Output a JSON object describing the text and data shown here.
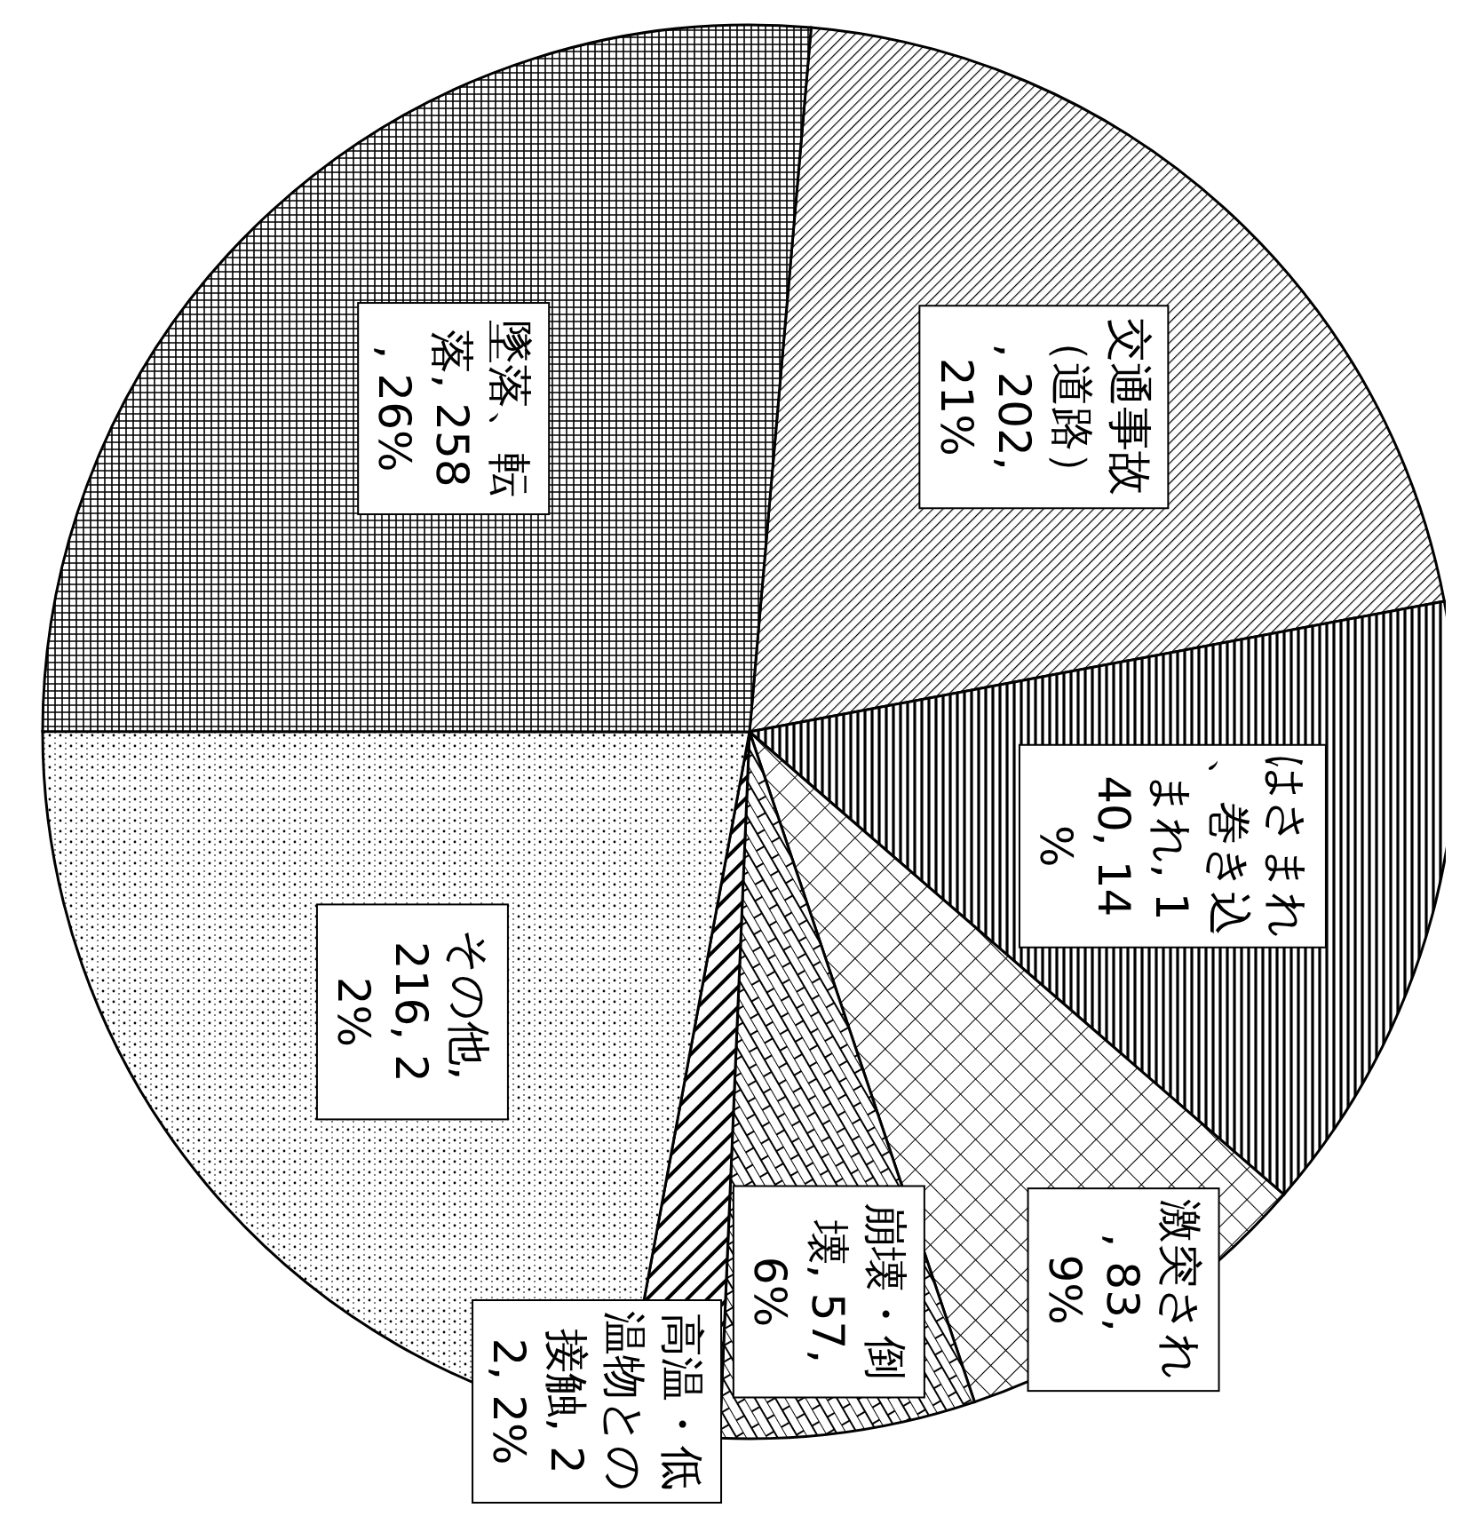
{
  "chart_data": {
    "type": "pie",
    "categories": [
      "交通事故（道路）",
      "はさまれ、巻き込まれ",
      "激突され",
      "崩壊・倒壊",
      "高温・低温物との接触",
      "その他",
      "墜落、転落"
    ],
    "values": [
      202,
      140,
      83,
      57,
      22,
      216,
      258
    ],
    "value_labels": [
      ", 202, 21%",
      ", 140, 14%",
      ", 83, 9%",
      ", 57, 6%",
      ", 22, 2%",
      ", 216, 22%",
      ", 258, 26%"
    ],
    "colors": [
      "#000000",
      "#000000",
      "#000000",
      "#000000",
      "#000000",
      "#000000",
      "#000000"
    ]
  }
}
